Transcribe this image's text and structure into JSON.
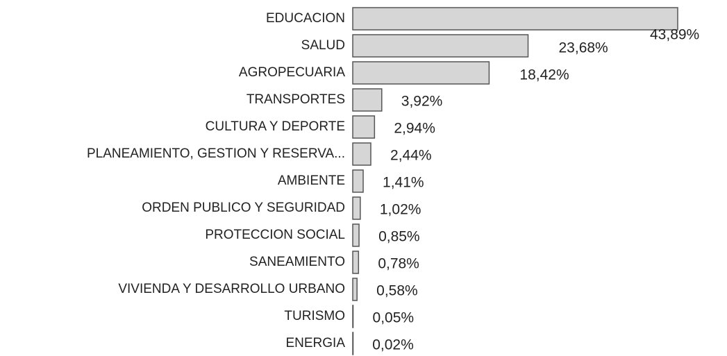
{
  "chart_data": {
    "type": "bar",
    "orientation": "horizontal",
    "categories": [
      "EDUCACION",
      "SALUD",
      "AGROPECUARIA",
      "TRANSPORTES",
      "CULTURA Y DEPORTE",
      "PLANEAMIENTO, GESTION Y RESERVA...",
      "AMBIENTE",
      "ORDEN PUBLICO Y SEGURIDAD",
      "PROTECCION SOCIAL",
      "SANEAMIENTO",
      "VIVIENDA Y DESARROLLO URBANO",
      "TURISMO",
      "ENERGIA"
    ],
    "values": [
      43.89,
      23.68,
      18.42,
      3.92,
      2.94,
      2.44,
      1.41,
      1.02,
      0.85,
      0.78,
      0.58,
      0.05,
      0.02
    ],
    "value_labels": [
      "43,89%",
      "23,68%",
      "18,42%",
      "3,92%",
      "2,94%",
      "2,44%",
      "1,41%",
      "1,02%",
      "0,85%",
      "0,78%",
      "0,58%",
      "0,05%",
      "0,02%"
    ],
    "color": "#d6d6d6"
  }
}
